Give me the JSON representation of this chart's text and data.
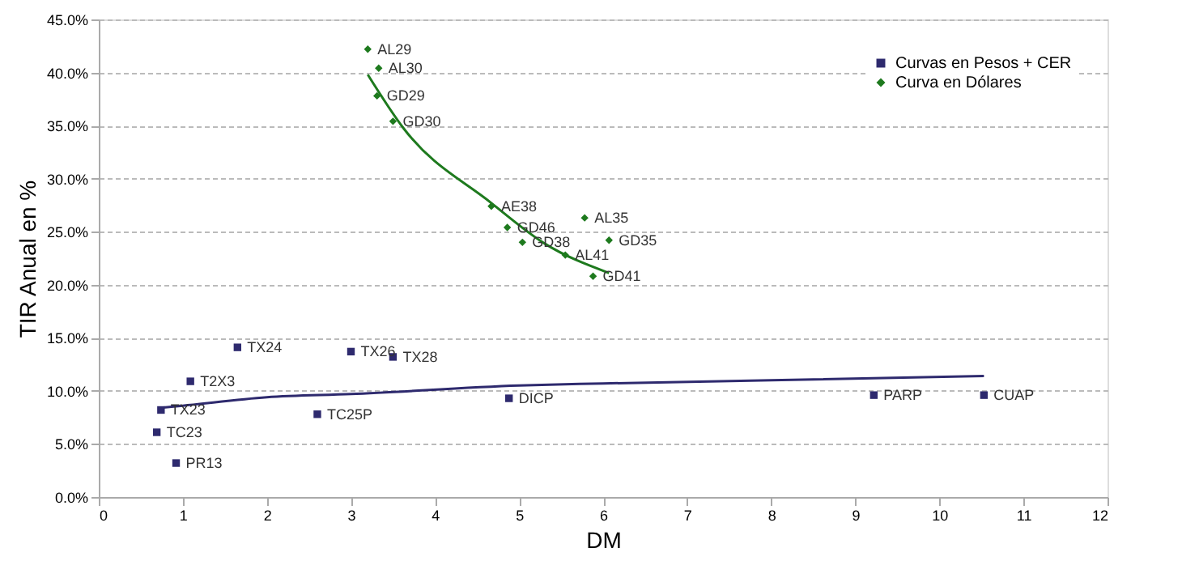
{
  "chart_data": {
    "type": "scatter",
    "xlabel": "DM",
    "ylabel": "TIR Anual en %",
    "series": [
      {
        "name": "Curvas en Pesos + CER",
        "color": "#2e2a6e",
        "marker": "square",
        "x": [
          0.74,
          0.69,
          0.92,
          1.09,
          1.65,
          2.6,
          3.0,
          3.5,
          4.88,
          9.22,
          10.53
        ],
        "values": [
          8.2,
          6.1,
          3.2,
          10.9,
          14.1,
          7.8,
          13.7,
          13.2,
          9.3,
          9.6,
          9.6
        ]
      },
      {
        "name": "Curva en Dólares",
        "color": "#1e7a1e",
        "marker": "diamond",
        "x": [
          3.2,
          3.33,
          3.31,
          3.5,
          4.67,
          4.86,
          5.04,
          5.55,
          5.78,
          6.07,
          5.88
        ],
        "values": [
          42.2,
          40.4,
          37.8,
          35.4,
          27.4,
          25.4,
          24.0,
          22.8,
          26.3,
          24.2,
          20.8
        ]
      },
      {
        "color": "#2e2a6e",
        "type": "line",
        "x": [
          0.74,
          1,
          2,
          3,
          5,
          6,
          8,
          10.53
        ],
        "values": [
          8.4,
          8.6,
          9.4,
          9.7,
          10.5,
          10.7,
          11.0,
          11.4
        ]
      },
      {
        "color": "#1e7a1e",
        "type": "line",
        "x": [
          3.2,
          3.62,
          4.67,
          5.3,
          6.07
        ],
        "values": [
          39.8,
          34.8,
          27.7,
          23.9,
          21.1
        ]
      }
    ],
    "annotations": [
      {
        "text": "TX23",
        "x": 0.74,
        "y": 8.2
      },
      {
        "text": "TC23",
        "x": 0.69,
        "y": 6.1
      },
      {
        "text": "PR13",
        "x": 0.92,
        "y": 3.2
      },
      {
        "text": "T2X3",
        "x": 1.09,
        "y": 10.9
      },
      {
        "text": "TX24",
        "x": 1.65,
        "y": 14.1
      },
      {
        "text": "TC25P",
        "x": 2.6,
        "y": 7.8
      },
      {
        "text": "TX26",
        "x": 3.0,
        "y": 13.7
      },
      {
        "text": "TX28",
        "x": 3.5,
        "y": 13.2
      },
      {
        "text": "DICP",
        "x": 4.88,
        "y": 9.3
      },
      {
        "text": "PARP",
        "x": 9.22,
        "y": 9.6
      },
      {
        "text": "CUAP",
        "x": 10.53,
        "y": 9.6
      },
      {
        "text": "AL29",
        "x": 3.2,
        "y": 42.2
      },
      {
        "text": "AL30",
        "x": 3.33,
        "y": 40.4
      },
      {
        "text": "GD29",
        "x": 3.31,
        "y": 37.8
      },
      {
        "text": "GD30",
        "x": 3.5,
        "y": 35.4
      },
      {
        "text": "AE38",
        "x": 4.67,
        "y": 27.4
      },
      {
        "text": "GD46",
        "x": 4.86,
        "y": 25.4
      },
      {
        "text": "GD38",
        "x": 5.04,
        "y": 24.0
      },
      {
        "text": "AL41",
        "x": 5.55,
        "y": 22.8
      },
      {
        "text": "AL35",
        "x": 5.78,
        "y": 26.3
      },
      {
        "text": "GD35",
        "x": 6.07,
        "y": 24.2
      },
      {
        "text": "GD41",
        "x": 5.88,
        "y": 20.8
      }
    ],
    "xlim": [
      0,
      12
    ],
    "xticks": [
      0,
      1,
      2,
      3,
      4,
      5,
      6,
      7,
      8,
      9,
      10,
      11,
      12
    ],
    "ylim": [
      0,
      45
    ],
    "yticks": [
      {
        "value": 0,
        "label": "0.0%"
      },
      {
        "value": 5,
        "label": "5.0%"
      },
      {
        "value": 10,
        "label": "10.0%"
      },
      {
        "value": 15,
        "label": "15.0%"
      },
      {
        "value": 20,
        "label": "20.0%"
      },
      {
        "value": 25,
        "label": "25.0%"
      },
      {
        "value": 30,
        "label": "30.0%"
      },
      {
        "value": 35,
        "label": "35.0%"
      },
      {
        "value": 40,
        "label": "40.0%"
      },
      {
        "value": 45,
        "label": "45.0%"
      }
    ],
    "grid": "y",
    "legend": "top right"
  }
}
